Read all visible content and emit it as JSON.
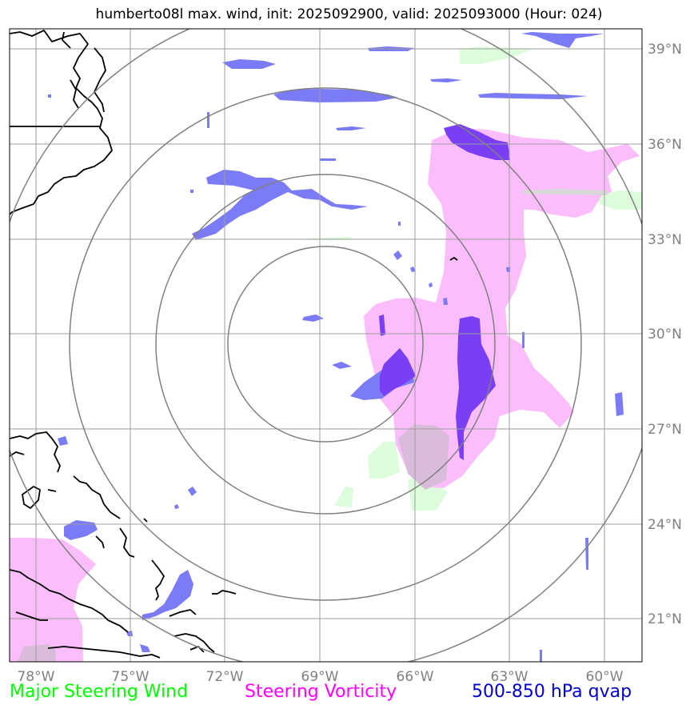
{
  "title": "humberto08l max. wind, init: 2025092900, valid: 2025093000 (Hour: 024)",
  "legend": [
    {
      "label": "Major Steering Wind",
      "color": "#00ff00"
    },
    {
      "label": "Steering Vorticity",
      "color": "#ff00ff"
    },
    {
      "label": "500-850 hPa qvap",
      "color": "#0000cc"
    }
  ],
  "axes": {
    "lon_labels": [
      "78°W",
      "75°W",
      "72°W",
      "69°W",
      "66°W",
      "63°W",
      "60°W"
    ],
    "lat_labels": [
      "39°N",
      "36°N",
      "33°N",
      "30°N",
      "27°N",
      "24°N",
      "21°N"
    ]
  },
  "map_colors": {
    "qvap": "#7b7bf5",
    "qvap_dark": "#7a3ef5",
    "vorticity": "#fbbdfb",
    "wind": "#dcfcdc",
    "overlap": "#d9bcd9",
    "grid": "#9e9e9e",
    "range_rings": "#808080",
    "coastline": "#000000"
  }
}
